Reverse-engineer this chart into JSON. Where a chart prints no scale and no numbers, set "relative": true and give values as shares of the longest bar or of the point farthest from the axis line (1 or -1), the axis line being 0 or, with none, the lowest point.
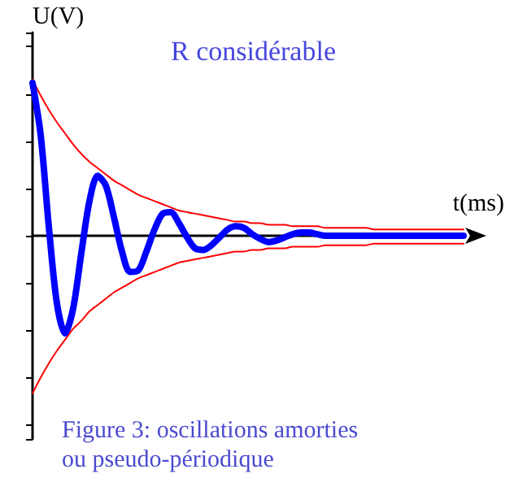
{
  "chart_data": {
    "type": "line",
    "title": "R considérable",
    "xlabel": "t(ms)",
    "ylabel": "U(V)",
    "annotations": [
      "Figure 3: oscillations amorties\nou pseudo-périodique"
    ],
    "relative": true,
    "grid": false,
    "line_style": "solid",
    "categories": [
      null,
      null,
      null,
      null,
      null,
      null,
      null,
      null,
      null,
      null,
      null,
      null,
      null,
      null,
      null,
      null,
      null,
      null,
      null,
      null,
      null,
      null,
      null,
      null,
      null,
      null,
      null,
      null,
      null,
      null,
      null,
      null,
      null,
      null,
      null,
      null,
      null,
      null,
      null,
      null,
      null,
      null,
      null,
      null,
      null,
      null,
      null,
      null,
      null,
      null,
      null,
      null,
      null,
      null
    ],
    "series": [
      {
        "color": "#ff0000",
        "values": [
          0.99,
          0.89,
          0.8,
          0.72,
          0.65,
          0.58,
          0.52,
          0.47,
          0.43,
          0.39,
          0.35,
          0.32,
          0.29,
          0.26,
          0.24,
          0.22,
          0.2,
          0.18,
          0.16,
          0.15,
          0.14,
          0.13,
          0.12,
          0.11,
          0.1,
          0.09,
          0.09,
          0.08,
          0.08,
          0.07,
          0.07,
          0.07,
          0.06,
          0.06,
          0.06,
          0.06,
          0.05,
          0.05,
          0.05,
          0.05,
          0.05,
          0.05,
          0.04,
          0.04,
          0.04,
          0.04,
          0.04,
          0.04,
          0.04,
          0.04,
          0.04,
          0.04,
          0.04,
          0.04
        ]
      },
      {
        "color": "#ff0000",
        "values": [
          -1.0,
          -0.9,
          -0.81,
          -0.73,
          -0.66,
          -0.59,
          -0.54,
          -0.48,
          -0.44,
          -0.4,
          -0.36,
          -0.33,
          -0.3,
          -0.27,
          -0.25,
          -0.23,
          -0.21,
          -0.19,
          -0.17,
          -0.16,
          -0.15,
          -0.14,
          -0.13,
          -0.12,
          -0.11,
          -0.1,
          -0.1,
          -0.09,
          -0.09,
          -0.08,
          -0.08,
          -0.08,
          -0.07,
          -0.07,
          -0.07,
          -0.07,
          -0.06,
          -0.06,
          -0.06,
          -0.06,
          -0.06,
          -0.06,
          -0.05,
          -0.05,
          -0.05,
          -0.05,
          -0.05,
          -0.05,
          -0.05,
          -0.05,
          -0.05,
          -0.05,
          -0.05,
          -0.05
        ]
      },
      {
        "color": "#0000ff",
        "values": [
          0.97,
          0.64,
          0.06,
          -0.43,
          -0.62,
          -0.46,
          -0.11,
          0.22,
          0.38,
          0.32,
          0.12,
          -0.1,
          -0.23,
          -0.22,
          -0.1,
          0.04,
          0.14,
          0.15,
          0.08,
          -0.01,
          -0.08,
          -0.09,
          -0.06,
          -0.01,
          0.04,
          0.06,
          0.05,
          0.01,
          -0.02,
          -0.04,
          -0.03,
          -0.01,
          0.01,
          0.02,
          0.02,
          0.01,
          0,
          0,
          0,
          0,
          0,
          0,
          0,
          0,
          0,
          0,
          0,
          0,
          0,
          0,
          0,
          0,
          0,
          0
        ]
      }
    ]
  }
}
